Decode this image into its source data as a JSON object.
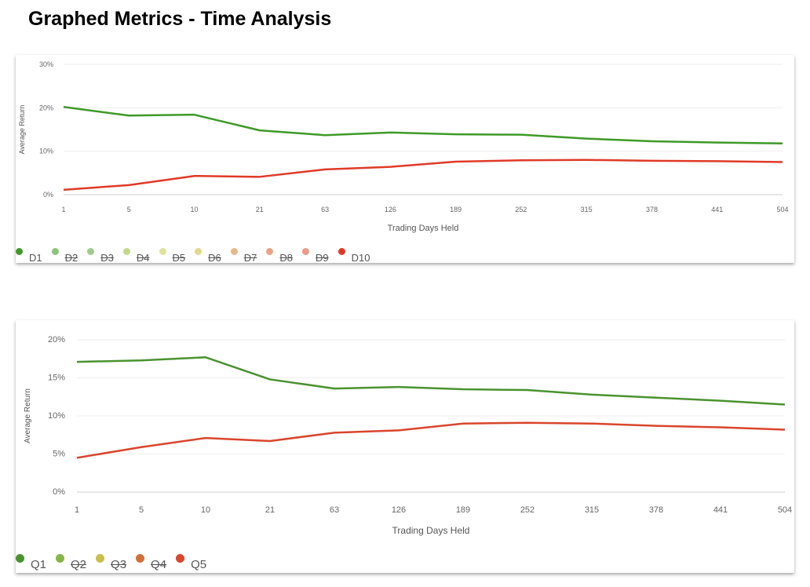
{
  "page_title": "Graphed Metrics - Time Analysis",
  "chart_data": [
    {
      "type": "line",
      "xlabel": "Trading Days Held",
      "ylabel": "Average Return",
      "categories": [
        "1",
        "5",
        "10",
        "21",
        "63",
        "126",
        "189",
        "252",
        "315",
        "378",
        "441",
        "504"
      ],
      "y_ticks": [
        "0%",
        "10%",
        "20%",
        "30%"
      ],
      "ylim": [
        0,
        30
      ],
      "grid": true,
      "legend_position": "bottom-left",
      "series": [
        {
          "name": "D1",
          "color": "#3e9a27",
          "visible": true,
          "values": [
            20.2,
            18.2,
            18.4,
            14.8,
            13.7,
            14.3,
            13.9,
            13.8,
            12.9,
            12.3,
            12.0,
            11.8
          ]
        },
        {
          "name": "D2",
          "color": "#8cc47a",
          "visible": false
        },
        {
          "name": "D3",
          "color": "#9fcd88",
          "visible": false
        },
        {
          "name": "D4",
          "color": "#c3d98a",
          "visible": false
        },
        {
          "name": "D5",
          "color": "#dfe39a",
          "visible": false
        },
        {
          "name": "D6",
          "color": "#e0d88a",
          "visible": false
        },
        {
          "name": "D7",
          "color": "#e8b884",
          "visible": false
        },
        {
          "name": "D8",
          "color": "#eba382",
          "visible": false
        },
        {
          "name": "D9",
          "color": "#ec9985",
          "visible": false
        },
        {
          "name": "D10",
          "color": "#e03a27",
          "visible": true,
          "values": [
            1.1,
            2.2,
            4.3,
            4.1,
            5.8,
            6.4,
            7.6,
            7.9,
            8.0,
            7.8,
            7.7,
            7.5
          ]
        }
      ]
    },
    {
      "type": "line",
      "xlabel": "Trading Days Held",
      "ylabel": "Average Return",
      "categories": [
        "1",
        "5",
        "10",
        "21",
        "63",
        "126",
        "189",
        "252",
        "315",
        "378",
        "441",
        "504"
      ],
      "y_ticks": [
        "0%",
        "5%",
        "10%",
        "15%",
        "20%"
      ],
      "ylim": [
        0,
        20
      ],
      "grid": true,
      "legend_position": "bottom-left",
      "series": [
        {
          "name": "Q1",
          "color": "#4a932f",
          "visible": true,
          "values": [
            17.1,
            17.3,
            17.7,
            14.8,
            13.6,
            13.8,
            13.5,
            13.4,
            12.8,
            12.4,
            12.0,
            11.5
          ]
        },
        {
          "name": "Q2",
          "color": "#86b548",
          "visible": false
        },
        {
          "name": "Q3",
          "color": "#c9bf4a",
          "visible": false
        },
        {
          "name": "Q4",
          "color": "#d2703a",
          "visible": false
        },
        {
          "name": "Q5",
          "color": "#d9462c",
          "visible": true,
          "values": [
            4.5,
            5.9,
            7.1,
            6.7,
            7.8,
            8.1,
            9.0,
            9.1,
            9.0,
            8.7,
            8.5,
            8.2
          ]
        }
      ]
    }
  ]
}
